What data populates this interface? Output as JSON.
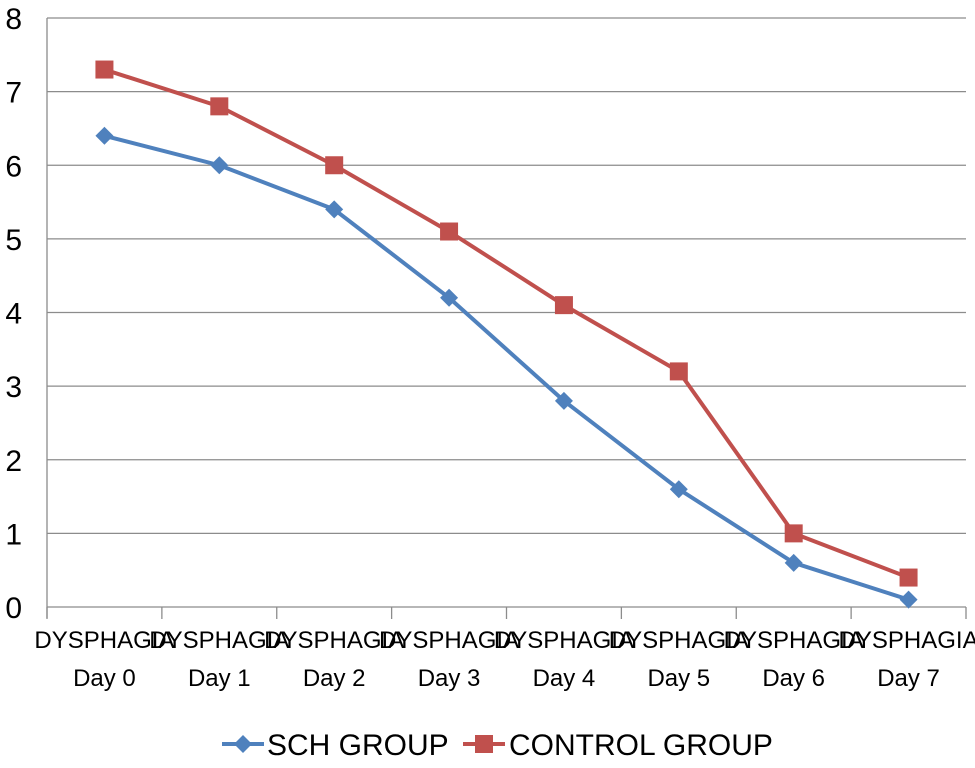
{
  "chart_data": {
    "type": "line",
    "title": "",
    "xlabel": "",
    "ylabel": "",
    "categories": [
      [
        "DYSPHAGIA",
        "Day 0"
      ],
      [
        "DYSPHAGIA",
        "Day 1"
      ],
      [
        "DYSPHAGIA",
        "Day 2"
      ],
      [
        "DYSPHAGIA",
        "Day 3"
      ],
      [
        "DYSPHAGIA",
        "Day 4"
      ],
      [
        "DYSPHAGIA",
        "Day 5"
      ],
      [
        "DYSPHAGIA",
        "Day 6"
      ],
      [
        "DYSPHAGIA",
        "Day 7"
      ]
    ],
    "ylim": [
      0,
      8
    ],
    "yticks": [
      "0",
      "1",
      "2",
      "3",
      "4",
      "5",
      "6",
      "7",
      "8"
    ],
    "grid": true,
    "legend": "bottom",
    "series": [
      {
        "name": "SCH GROUP",
        "color": "#4f81bd",
        "marker": "diamond",
        "values": [
          6.4,
          6.0,
          5.4,
          4.2,
          2.8,
          1.6,
          0.6,
          0.1
        ]
      },
      {
        "name": "CONTROL GROUP",
        "color": "#c0504d",
        "marker": "square",
        "values": [
          7.3,
          6.8,
          6.0,
          5.1,
          4.1,
          3.2,
          1.0,
          0.4
        ]
      }
    ]
  }
}
